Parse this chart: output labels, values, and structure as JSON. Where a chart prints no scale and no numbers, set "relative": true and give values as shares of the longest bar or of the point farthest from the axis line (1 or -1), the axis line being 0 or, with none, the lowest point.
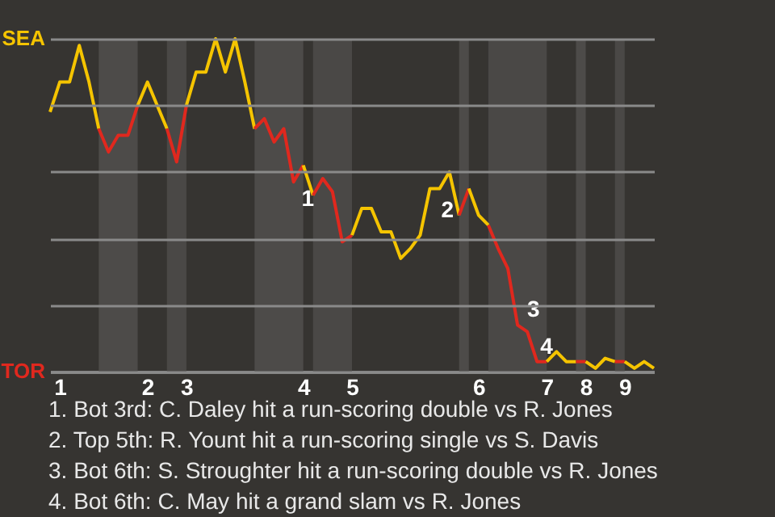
{
  "chart_data": {
    "type": "line",
    "categories": [
      null,
      "1",
      null,
      null,
      null,
      null,
      null,
      null,
      null,
      null,
      "2",
      null,
      null,
      null,
      "3",
      null,
      null,
      null,
      null,
      null,
      null,
      null,
      null,
      null,
      null,
      null,
      "4",
      null,
      null,
      null,
      null,
      "5",
      null,
      null,
      null,
      null,
      null,
      null,
      null,
      null,
      null,
      null,
      null,
      null,
      "6",
      null,
      null,
      null,
      null,
      null,
      null,
      "7",
      null,
      null,
      null,
      "8",
      null,
      null,
      null,
      "9",
      null,
      null,
      null
    ],
    "relative": true,
    "series": [
      {
        "color": "#f5c400",
        "values": [
          0.78,
          0.87,
          0.87,
          0.98,
          0.87,
          0.73,
          null,
          null,
          null,
          null,
          null,
          null,
          null,
          null,
          null,
          null,
          null,
          null,
          null,
          null,
          null,
          null,
          null,
          null,
          null,
          null,
          null,
          null,
          null,
          null,
          null,
          null,
          null,
          null,
          null,
          null,
          null,
          null,
          null,
          null,
          null,
          null,
          null,
          null,
          null,
          null,
          null,
          null,
          null,
          null,
          null,
          null,
          null,
          null,
          null,
          null,
          null,
          null,
          null,
          null,
          null,
          null,
          null
        ]
      },
      {
        "color": "#e0281e",
        "values": [
          null,
          null,
          null,
          null,
          null,
          0.73,
          0.66,
          0.71,
          0.71,
          0.8,
          null,
          null,
          null,
          null,
          null,
          null,
          null,
          null,
          null,
          null,
          null,
          null,
          null,
          null,
          null,
          null,
          null,
          null,
          null,
          null,
          null,
          null,
          null,
          null,
          null,
          null,
          null,
          null,
          null,
          null,
          null,
          null,
          null,
          null,
          null,
          null,
          null,
          null,
          null,
          null,
          null,
          null,
          null,
          null,
          null,
          null,
          null,
          null,
          null,
          null,
          null,
          null,
          null
        ]
      },
      {
        "color": "#f5c400",
        "values": [
          null,
          null,
          null,
          null,
          null,
          null,
          null,
          null,
          null,
          0.8,
          0.87,
          0.8,
          0.73,
          null,
          null,
          null,
          null,
          null,
          null,
          null,
          null,
          null,
          null,
          null,
          null,
          null,
          null,
          null,
          null,
          null,
          null,
          null,
          null,
          null,
          null,
          null,
          null,
          null,
          null,
          null,
          null,
          null,
          null,
          null,
          null,
          null,
          null,
          null,
          null,
          null,
          null,
          null,
          null,
          null,
          null,
          null,
          null,
          null,
          null,
          null,
          null,
          null,
          null
        ]
      },
      {
        "color": "#e0281e",
        "values": [
          null,
          null,
          null,
          null,
          null,
          null,
          null,
          null,
          null,
          null,
          null,
          null,
          0.73,
          0.63,
          0.8,
          null,
          null,
          null,
          null,
          null,
          null,
          null,
          null,
          null,
          null,
          null,
          null,
          null,
          null,
          null,
          null,
          null,
          null,
          null,
          null,
          null,
          null,
          null,
          null,
          null,
          null,
          null,
          null,
          null,
          null,
          null,
          null,
          null,
          null,
          null,
          null,
          null,
          null,
          null,
          null,
          null,
          null,
          null,
          null,
          null,
          null,
          null,
          null
        ]
      },
      {
        "color": "#f5c400",
        "values": [
          null,
          null,
          null,
          null,
          null,
          null,
          null,
          null,
          null,
          null,
          null,
          null,
          null,
          null,
          0.8,
          0.9,
          0.9,
          1,
          0.9,
          1,
          0.87,
          0.73,
          null,
          null,
          null,
          null,
          null,
          null,
          null,
          null,
          null,
          null,
          null,
          null,
          null,
          null,
          null,
          null,
          null,
          null,
          null,
          null,
          null,
          null,
          null,
          null,
          null,
          null,
          null,
          null,
          null,
          null,
          null,
          null,
          null,
          null,
          null,
          null,
          null,
          null,
          null,
          null,
          null
        ]
      },
      {
        "color": "#e0281e",
        "values": [
          null,
          null,
          null,
          null,
          null,
          null,
          null,
          null,
          null,
          null,
          null,
          null,
          null,
          null,
          null,
          null,
          null,
          null,
          null,
          null,
          null,
          0.73,
          0.76,
          0.69,
          0.73,
          0.57,
          0.62,
          null,
          null,
          null,
          null,
          null,
          null,
          null,
          null,
          null,
          null,
          null,
          null,
          null,
          null,
          null,
          null,
          null,
          null,
          null,
          null,
          null,
          null,
          null,
          null,
          null,
          null,
          null,
          null,
          null,
          null,
          null,
          null,
          null,
          null,
          null,
          null
        ]
      },
      {
        "color": "#f5c400",
        "values": [
          null,
          null,
          null,
          null,
          null,
          null,
          null,
          null,
          null,
          null,
          null,
          null,
          null,
          null,
          null,
          null,
          null,
          null,
          null,
          null,
          null,
          null,
          null,
          null,
          null,
          null,
          0.62,
          0.53,
          null,
          null,
          null,
          null,
          null,
          null,
          null,
          null,
          null,
          null,
          null,
          null,
          null,
          null,
          null,
          null,
          null,
          null,
          null,
          null,
          null,
          null,
          null,
          null,
          null,
          null,
          null,
          null,
          null,
          null,
          null,
          null,
          null,
          null,
          null
        ]
      },
      {
        "color": "#e0281e",
        "values": [
          null,
          null,
          null,
          null,
          null,
          null,
          null,
          null,
          null,
          null,
          null,
          null,
          null,
          null,
          null,
          null,
          null,
          null,
          null,
          null,
          null,
          null,
          null,
          null,
          null,
          null,
          null,
          0.53,
          0.58,
          0.54,
          0.39,
          0.41,
          null,
          null,
          null,
          null,
          null,
          null,
          null,
          null,
          null,
          null,
          null,
          null,
          null,
          null,
          null,
          null,
          null,
          null,
          null,
          null,
          null,
          null,
          null,
          null,
          null,
          null,
          null,
          null,
          null,
          null,
          null
        ]
      },
      {
        "color": "#f5c400",
        "values": [
          null,
          null,
          null,
          null,
          null,
          null,
          null,
          null,
          null,
          null,
          null,
          null,
          null,
          null,
          null,
          null,
          null,
          null,
          null,
          null,
          null,
          null,
          null,
          null,
          null,
          null,
          null,
          null,
          null,
          null,
          null,
          0.41,
          0.49,
          0.49,
          0.42,
          0.42,
          0.34,
          0.37,
          0.41,
          0.55,
          0.55,
          0.6,
          0.47,
          null,
          null,
          null,
          null,
          null,
          null,
          null,
          null,
          null,
          null,
          null,
          null,
          null,
          null,
          null,
          null,
          null,
          null,
          null,
          null
        ]
      },
      {
        "color": "#e0281e",
        "values": [
          null,
          null,
          null,
          null,
          null,
          null,
          null,
          null,
          null,
          null,
          null,
          null,
          null,
          null,
          null,
          null,
          null,
          null,
          null,
          null,
          null,
          null,
          null,
          null,
          null,
          null,
          null,
          null,
          null,
          null,
          null,
          null,
          null,
          null,
          null,
          null,
          null,
          null,
          null,
          null,
          null,
          null,
          0.47,
          0.55,
          null,
          null,
          null,
          null,
          null,
          null,
          null,
          null,
          null,
          null,
          null,
          null,
          null,
          null,
          null,
          null,
          null,
          null,
          null
        ]
      },
      {
        "color": "#f5c400",
        "values": [
          null,
          null,
          null,
          null,
          null,
          null,
          null,
          null,
          null,
          null,
          null,
          null,
          null,
          null,
          null,
          null,
          null,
          null,
          null,
          null,
          null,
          null,
          null,
          null,
          null,
          null,
          null,
          null,
          null,
          null,
          null,
          null,
          null,
          null,
          null,
          null,
          null,
          null,
          null,
          null,
          null,
          null,
          null,
          0.55,
          0.47,
          0.44,
          null,
          null,
          null,
          null,
          null,
          null,
          null,
          null,
          null,
          null,
          null,
          null,
          null,
          null,
          null,
          null,
          null
        ]
      },
      {
        "color": "#e0281e",
        "values": [
          null,
          null,
          null,
          null,
          null,
          null,
          null,
          null,
          null,
          null,
          null,
          null,
          null,
          null,
          null,
          null,
          null,
          null,
          null,
          null,
          null,
          null,
          null,
          null,
          null,
          null,
          null,
          null,
          null,
          null,
          null,
          null,
          null,
          null,
          null,
          null,
          null,
          null,
          null,
          null,
          null,
          null,
          null,
          null,
          null,
          0.44,
          0.37,
          0.31,
          0.14,
          0.12,
          0.03,
          0.03,
          null,
          null,
          null,
          null,
          null,
          null,
          null,
          null,
          null,
          null,
          null
        ]
      },
      {
        "color": "#f5c400",
        "values": [
          null,
          null,
          null,
          null,
          null,
          null,
          null,
          null,
          null,
          null,
          null,
          null,
          null,
          null,
          null,
          null,
          null,
          null,
          null,
          null,
          null,
          null,
          null,
          null,
          null,
          null,
          null,
          null,
          null,
          null,
          null,
          null,
          null,
          null,
          null,
          null,
          null,
          null,
          null,
          null,
          null,
          null,
          null,
          null,
          null,
          null,
          null,
          null,
          null,
          null,
          null,
          0.03,
          0.06,
          0.03,
          0.03,
          null,
          null,
          null,
          null,
          null,
          null,
          null,
          null
        ]
      },
      {
        "color": "#e0281e",
        "values": [
          null,
          null,
          null,
          null,
          null,
          null,
          null,
          null,
          null,
          null,
          null,
          null,
          null,
          null,
          null,
          null,
          null,
          null,
          null,
          null,
          null,
          null,
          null,
          null,
          null,
          null,
          null,
          null,
          null,
          null,
          null,
          null,
          null,
          null,
          null,
          null,
          null,
          null,
          null,
          null,
          null,
          null,
          null,
          null,
          null,
          null,
          null,
          null,
          null,
          null,
          null,
          null,
          null,
          null,
          0.03,
          0.03,
          null,
          null,
          null,
          null,
          null,
          null,
          null
        ]
      },
      {
        "color": "#f5c400",
        "values": [
          null,
          null,
          null,
          null,
          null,
          null,
          null,
          null,
          null,
          null,
          null,
          null,
          null,
          null,
          null,
          null,
          null,
          null,
          null,
          null,
          null,
          null,
          null,
          null,
          null,
          null,
          null,
          null,
          null,
          null,
          null,
          null,
          null,
          null,
          null,
          null,
          null,
          null,
          null,
          null,
          null,
          null,
          null,
          null,
          null,
          null,
          null,
          null,
          null,
          null,
          null,
          null,
          null,
          null,
          null,
          0.03,
          0.01,
          0.04,
          0.03,
          null,
          null,
          null,
          null
        ]
      },
      {
        "color": "#e0281e",
        "values": [
          null,
          null,
          null,
          null,
          null,
          null,
          null,
          null,
          null,
          null,
          null,
          null,
          null,
          null,
          null,
          null,
          null,
          null,
          null,
          null,
          null,
          null,
          null,
          null,
          null,
          null,
          null,
          null,
          null,
          null,
          null,
          null,
          null,
          null,
          null,
          null,
          null,
          null,
          null,
          null,
          null,
          null,
          null,
          null,
          null,
          null,
          null,
          null,
          null,
          null,
          null,
          null,
          null,
          null,
          null,
          null,
          null,
          null,
          0.03,
          0.03,
          null,
          null,
          null
        ]
      },
      {
        "color": "#f5c400",
        "values": [
          null,
          null,
          null,
          null,
          null,
          null,
          null,
          null,
          null,
          null,
          null,
          null,
          null,
          null,
          null,
          null,
          null,
          null,
          null,
          null,
          null,
          null,
          null,
          null,
          null,
          null,
          null,
          null,
          null,
          null,
          null,
          null,
          null,
          null,
          null,
          null,
          null,
          null,
          null,
          null,
          null,
          null,
          null,
          null,
          null,
          null,
          null,
          null,
          null,
          null,
          null,
          null,
          null,
          null,
          null,
          null,
          null,
          null,
          null,
          0.03,
          0.01,
          0.03,
          0.01
        ]
      },
      {
        "type": "area",
        "color": "#4d4b49",
        "values": [
          null,
          null,
          null,
          null,
          null,
          1,
          1,
          1,
          1,
          1,
          null,
          null,
          null,
          null,
          null,
          null,
          null,
          null,
          null,
          null,
          null,
          1,
          1,
          1,
          1,
          1,
          1,
          null,
          null,
          null,
          null,
          null,
          null,
          null,
          null,
          null,
          null,
          null,
          null,
          null,
          null,
          null,
          1,
          1,
          null,
          null,
          null,
          null,
          null,
          null,
          null,
          null,
          null,
          null,
          1,
          1,
          null,
          null,
          null,
          null,
          null,
          null,
          null
        ]
      },
      {
        "type": "area",
        "color": "#4a4846",
        "values": [
          null,
          null,
          null,
          null,
          null,
          null,
          null,
          null,
          null,
          null,
          null,
          null,
          1,
          1,
          1,
          null,
          null,
          null,
          null,
          null,
          null,
          null,
          null,
          null,
          null,
          null,
          null,
          1,
          1,
          1,
          1,
          1,
          null,
          null,
          null,
          null,
          null,
          null,
          null,
          null,
          null,
          null,
          null,
          null,
          null,
          1,
          1,
          1,
          1,
          1,
          1,
          1,
          null,
          null,
          null,
          null,
          null,
          null,
          1,
          1,
          null,
          null,
          null
        ]
      }
    ],
    "grid": "y",
    "annotations": [
      "SEA",
      "TOR",
      "1",
      "2",
      "3",
      "4",
      "1. Bot 3rd: C. Daley hit a run-scoring double vs R. Jones",
      "2. Top 5th: R. Yount hit a run-scoring single vs S. Davis",
      "3. Bot 6th: S. Stroughter hit a run-scoring double vs R. Jones",
      "4. Bot 6th: C. May hit a grand slam vs R. Jones"
    ]
  }
}
